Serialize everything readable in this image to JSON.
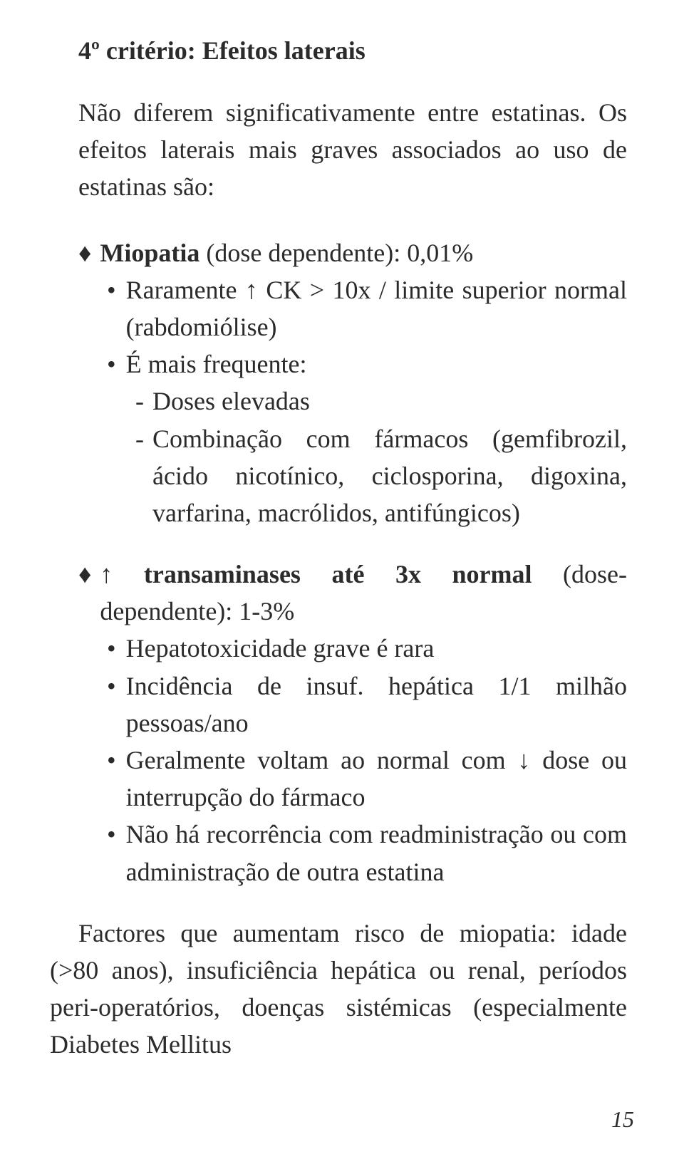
{
  "title": "4º critério:",
  "title_after": " Efeitos laterais",
  "intro": "Não diferem significativamente entre estatinas. Os efeitos laterais mais graves associados ao uso de estatinas são:",
  "block1": {
    "heading_bold": "Miopatia",
    "heading_rest": " (dose dependente): 0,01%",
    "b1": "Raramente ↑ CK > 10x / limite superior normal (rabdomiólise)",
    "b2": "É mais frequente:",
    "d1": "Doses elevadas",
    "d2": "Combinação com fármacos (gemfibrozil, ácido nicotínico, ciclosporina, digoxina, varfarina, macrólidos, antifúngicos)"
  },
  "block2": {
    "heading_leading": "↑ ",
    "heading_bold": "transaminases até 3x normal",
    "heading_rest": " (dose-dependente): 1-3%",
    "b1": "Hepatotoxicidade grave é rara",
    "b2": "Incidência de insuf. hepática 1/1 milhão pessoas/ano",
    "b3": "Geralmente voltam ao normal com ↓ dose ou interrupção do fármaco",
    "b4": "Não há recorrência com readministração ou com administração de outra estatina"
  },
  "closing": "Factores que aumentam risco de miopatia: idade (>80 anos), insuficiência hepática ou renal, períodos peri-operatórios, doenças sistémicas (especialmente Diabetes Mellitus",
  "page_number": "15",
  "bullets": {
    "diamond": "♦",
    "dot": "•",
    "dash": "-"
  }
}
